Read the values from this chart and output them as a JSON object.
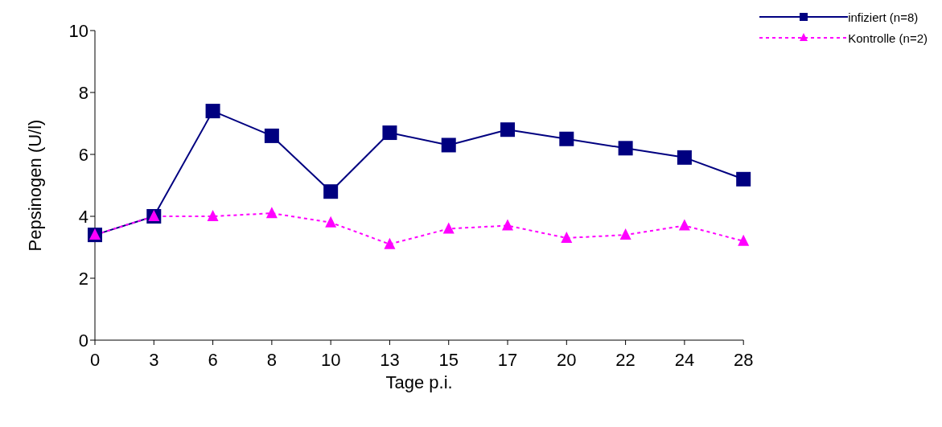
{
  "chart_data": {
    "type": "line",
    "xlabel": "Tage p.i.",
    "ylabel": "Pepsinogen (U/l)",
    "categories": [
      "0",
      "3",
      "6",
      "8",
      "10",
      "13",
      "15",
      "17",
      "20",
      "22",
      "24",
      "28"
    ],
    "series": [
      {
        "name": "infiziert (n=8)",
        "color": "#000080",
        "marker": "square",
        "line_style": "solid",
        "values": [
          3.4,
          4.0,
          7.4,
          6.6,
          4.8,
          6.7,
          6.3,
          6.8,
          6.5,
          6.2,
          5.9,
          5.2
        ]
      },
      {
        "name": "Kontrolle (n=2)",
        "color": "#ff00ff",
        "marker": "triangle",
        "line_style": "dotted",
        "values": [
          3.4,
          4.0,
          4.0,
          4.1,
          3.8,
          3.1,
          3.6,
          3.7,
          3.3,
          3.4,
          3.7,
          3.2
        ]
      }
    ],
    "ylim": [
      0,
      10
    ],
    "yticks": [
      0,
      2,
      4,
      6,
      8,
      10
    ],
    "grid": false,
    "legend": "top right"
  }
}
